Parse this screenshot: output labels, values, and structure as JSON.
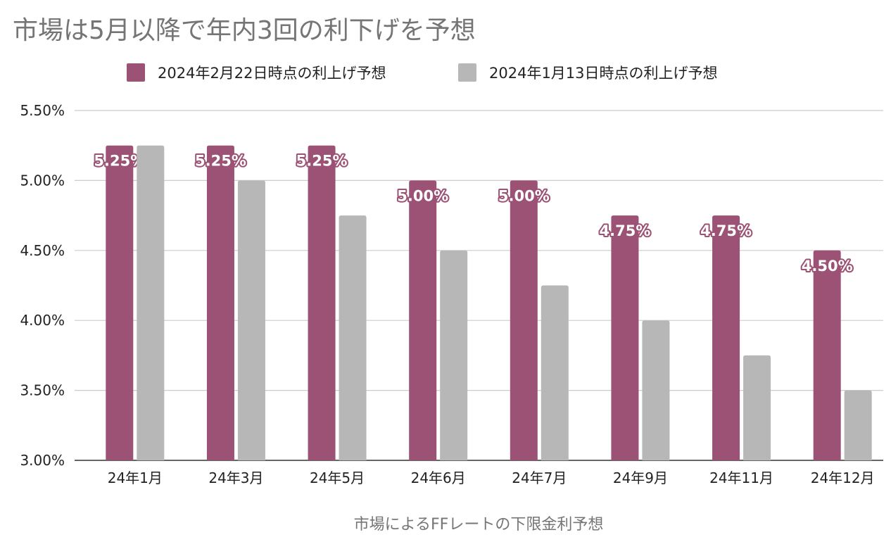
{
  "chart_data": {
    "type": "bar",
    "title": "市場は5月以降で年内3回の利下げを予想",
    "xlabel": "市場によるFFレートの下限金利予想",
    "ylabel": "",
    "categories": [
      "24年1月",
      "24年3月",
      "24年5月",
      "24年6月",
      "24年7月",
      "24年9月",
      "24年11月",
      "24年12月"
    ],
    "series": [
      {
        "name": "2024年2月22日時点の利上げ予想",
        "color": "#9b5275",
        "values": [
          5.25,
          5.25,
          5.25,
          5.0,
          5.0,
          4.75,
          4.75,
          4.5
        ],
        "labels": [
          "5.25%",
          "5.25%",
          "5.25%",
          "5.00%",
          "5.00%",
          "4.75%",
          "4.75%",
          "4.50%"
        ]
      },
      {
        "name": "2024年1月13日時点の利上げ予想",
        "color": "#b7b7b7",
        "values": [
          5.25,
          5.0,
          4.75,
          4.5,
          4.25,
          4.0,
          3.75,
          3.5
        ]
      }
    ],
    "ylim": [
      3.0,
      5.5
    ],
    "yticks": [
      3.0,
      3.5,
      4.0,
      4.5,
      5.0,
      5.5
    ],
    "ytick_labels": [
      "3.00%",
      "3.50%",
      "4.00%",
      "4.50%",
      "5.00%",
      "5.50%"
    ],
    "grid": true,
    "legend_position": "top-center"
  }
}
